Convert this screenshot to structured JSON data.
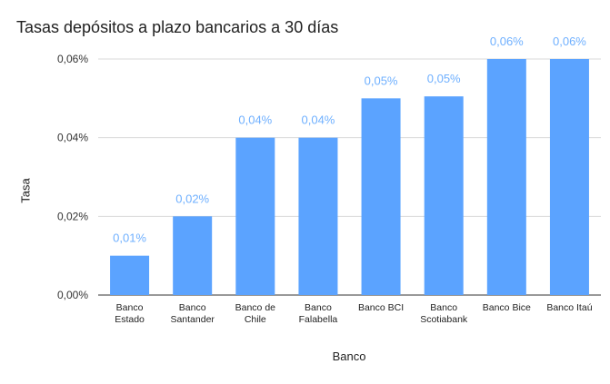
{
  "chart_data": {
    "type": "bar",
    "title": "Tasas depósitos a plazo bancarios a 30 días",
    "xlabel": "Banco",
    "ylabel": "Tasa",
    "categories": [
      [
        "Banco",
        "Estado"
      ],
      [
        "Banco",
        "Santander"
      ],
      [
        "Banco de",
        "Chile"
      ],
      [
        "Banco",
        "Falabella"
      ],
      [
        "Banco BCI"
      ],
      [
        "Banco",
        "Scotiabank"
      ],
      [
        "Banco Bice"
      ],
      [
        "Banco Itaú"
      ]
    ],
    "values": [
      0.0001,
      0.0002,
      0.0004,
      0.0004,
      0.0005,
      0.000505,
      0.0006,
      0.0006
    ],
    "data_labels": [
      "0,01%",
      "0,02%",
      "0,04%",
      "0,04%",
      "0,05%",
      "0,05%",
      "0,06%",
      "0,06%"
    ],
    "ylim": [
      0,
      0.0006
    ],
    "yticks": [
      0,
      0.0002,
      0.0004,
      0.0006
    ],
    "ytick_labels": [
      "0,00%",
      "0,02%",
      "0,04%",
      "0,06%"
    ],
    "grid": true,
    "bar_color": "#5ba3ff",
    "label_color": "#6fb0ff"
  }
}
